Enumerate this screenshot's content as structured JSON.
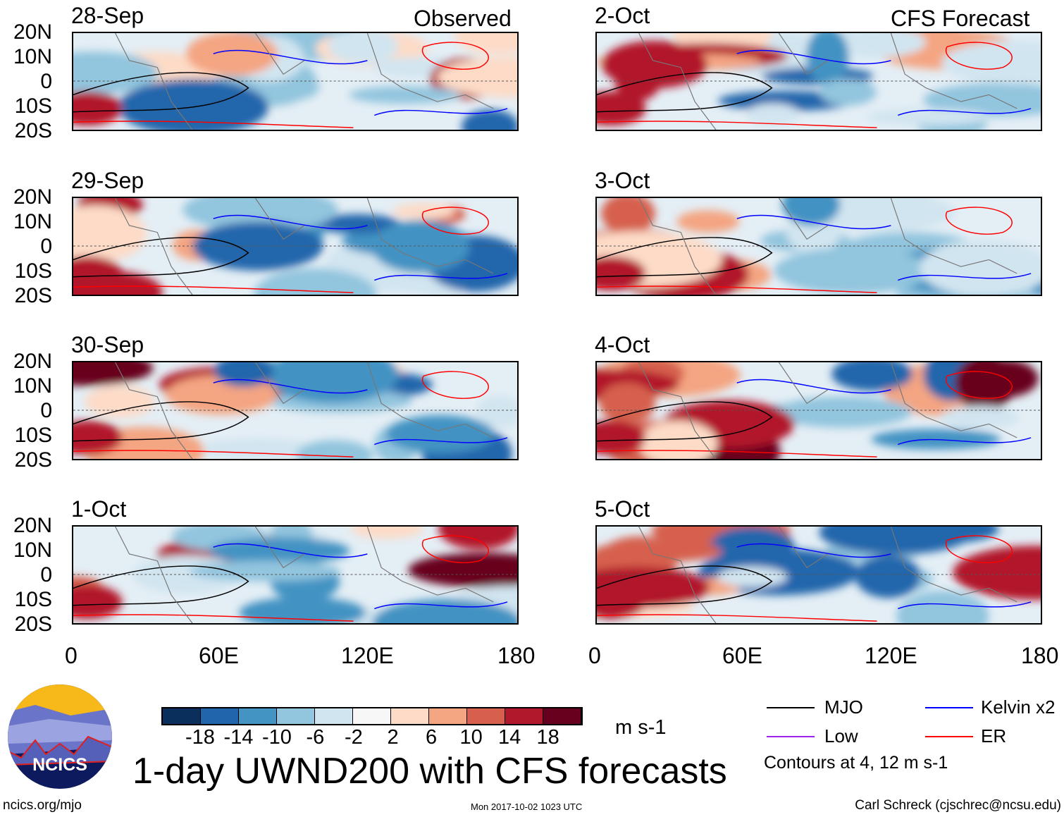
{
  "panels_left": {
    "title": "Observed",
    "dates": [
      "28-Sep",
      "29-Sep",
      "30-Sep",
      "1-Oct"
    ]
  },
  "panels_right": {
    "title": "CFS Forecast",
    "dates": [
      "2-Oct",
      "3-Oct",
      "4-Oct",
      "5-Oct"
    ]
  },
  "lat_labels": [
    "20N",
    "10N",
    "0",
    "10S",
    "20S"
  ],
  "lon_labels": [
    "0",
    "60E",
    "120E",
    "180"
  ],
  "colorbar": {
    "labels": [
      "-18",
      "-14",
      "-10",
      "-6",
      "-2",
      "2",
      "6",
      "10",
      "14",
      "18"
    ],
    "colors": [
      "#0b2f5c",
      "#2166ac",
      "#4393c3",
      "#92c5de",
      "#d1e5f0",
      "#f7f7f7",
      "#fddbc7",
      "#f4a582",
      "#d6604d",
      "#b2182b",
      "#67001f"
    ],
    "units": "m s-1"
  },
  "legend": {
    "items": [
      {
        "label": "MJO",
        "color": "#000000"
      },
      {
        "label": "Kelvin x2",
        "color": "#0000ff"
      },
      {
        "label": "Low",
        "color": "#a020f0"
      },
      {
        "label": "ER",
        "color": "#ff0000"
      }
    ],
    "contours": "Contours at 4, 12 m s-1"
  },
  "title": "1-day UWND200 with CFS forecasts",
  "logo_text": "NCICS",
  "url": "ncics.org/mjo",
  "timestamp": "Mon 2017-10-02 1023 UTC",
  "author": "Carl Schreck (cjschrec@ncsu.edu)"
}
